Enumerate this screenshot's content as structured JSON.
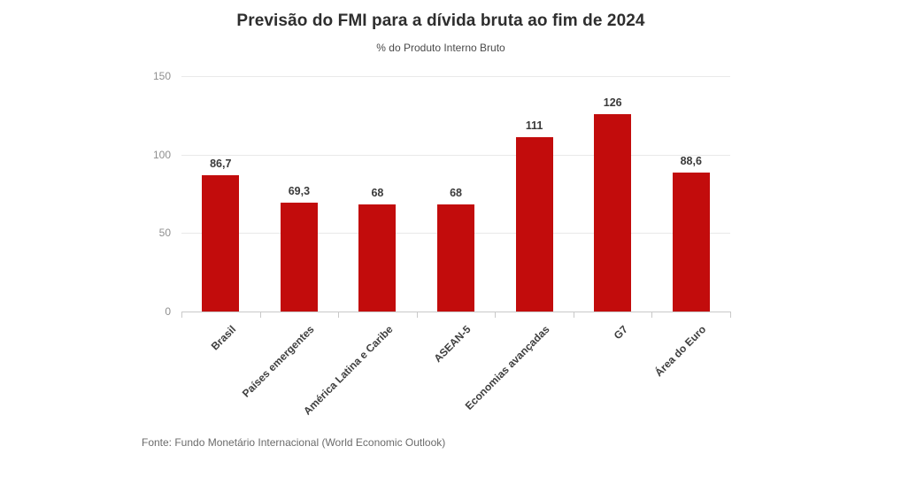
{
  "header": {
    "title": "Previsão do FMI para a dívida bruta ao fim de 2024",
    "subtitle": "% do Produto Interno Bruto"
  },
  "footer": {
    "source": "Fonte: Fundo Monetário Internacional (World Economic Outlook)"
  },
  "chart_data": {
    "type": "bar",
    "title": "Previsão do FMI para a dívida bruta ao fim de 2024",
    "subtitle": "% do Produto Interno Bruto",
    "categories": [
      "Brasil",
      "Países emergentes",
      "América Latina e Caribe",
      "ASEAN-5",
      "Economias avançadas",
      "G7",
      "Área do Euro"
    ],
    "values": [
      86.7,
      69.3,
      68,
      68,
      111,
      126,
      88.6
    ],
    "value_labels": [
      "86,7",
      "69,3",
      "68",
      "68",
      "111",
      "126",
      "88,6"
    ],
    "yticks": [
      0,
      50,
      100,
      150
    ],
    "ylim": [
      0,
      150
    ],
    "grid": true,
    "legend": false,
    "source": "Fonte: Fundo Monetário Internacional (World Economic Outlook)",
    "colors": {
      "bar": "#c20c0c",
      "gridline": "#e9e9e9",
      "axis": "#c9c9c9",
      "y_tick_text": "#8f8f8f",
      "value_text": "#3a3a3a",
      "category_text": "#3f3f3f",
      "title_text": "#2e2e2e"
    }
  }
}
